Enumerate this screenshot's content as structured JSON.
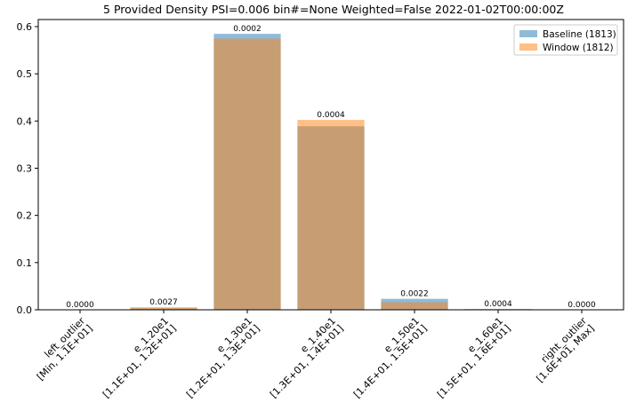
{
  "chart_data": {
    "type": "bar",
    "title": "5 Provided Density PSI=0.006 bin#=None Weighted=False 2022-01-02T00:00:00Z",
    "xlabel": "",
    "ylabel": "",
    "ylim": [
      0,
      0.615
    ],
    "yticks": [
      "0.0",
      "0.1",
      "0.2",
      "0.3",
      "0.4",
      "0.5",
      "0.6"
    ],
    "categories": [
      [
        "left_outlier",
        "[Min, 1.1E+01]"
      ],
      [
        "e_1.20e1",
        "[1.1E+01, 1.2E+01]"
      ],
      [
        "e_1.30e1",
        "[1.2E+01, 1.3E+01]"
      ],
      [
        "e_1.40e1",
        "[1.3E+01, 1.4E+01]"
      ],
      [
        "e_1.50e1",
        "[1.4E+01, 1.5E+01]"
      ],
      [
        "e_1.60e1",
        "[1.5E+01, 1.6E+01]"
      ],
      [
        "right_outlier",
        "[1.6E+01, Max]"
      ]
    ],
    "series": [
      {
        "name": "Baseline (1813)",
        "color": "#1f77b4",
        "values": [
          0.0,
          0.0033,
          0.5847,
          0.3888,
          0.0232,
          0.0011,
          0.0
        ]
      },
      {
        "name": "Window (1812)",
        "color": "#ff7f0e",
        "values": [
          0.0,
          0.0055,
          0.5745,
          0.4023,
          0.016,
          0.0017,
          0.0
        ]
      }
    ],
    "bar_labels": [
      "0.0000",
      "0.0027",
      "0.0002",
      "0.0004",
      "0.0022",
      "0.0004",
      "0.0000"
    ],
    "legend_position": "top-right",
    "grid": false
  }
}
